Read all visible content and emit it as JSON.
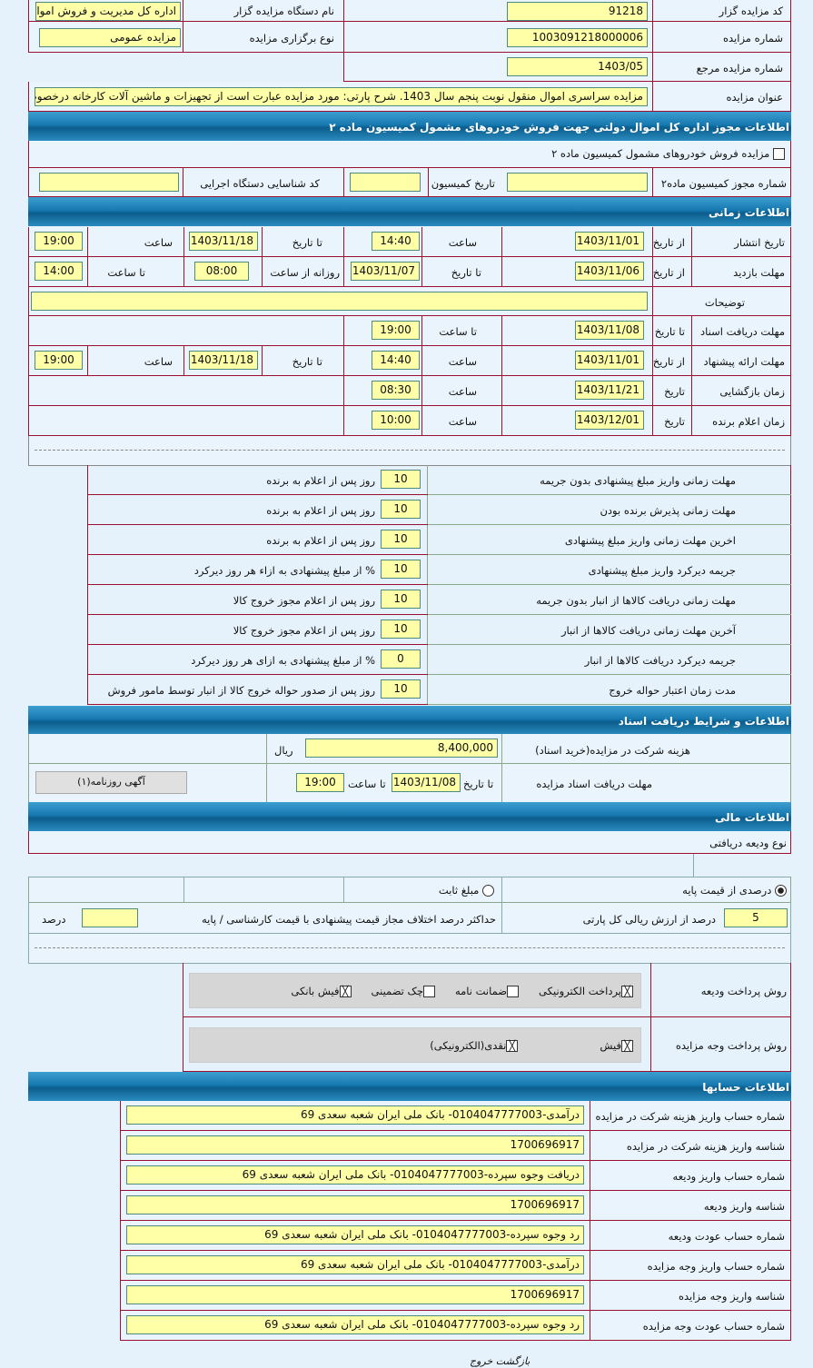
{
  "auction": {
    "code_label": "کد مزایده گزار",
    "code": "91218",
    "org_label": "نام دستگاه مزایده گزار",
    "org": "اداره کل مدیریت و فروش اموال",
    "number_label": "شماره مزایده",
    "number": "1003091218000006",
    "type_label": "نوع برگزاری مزایده",
    "type": "مزایده عمومی",
    "ref_label": "شماره مزایده مرجع",
    "ref": "1403/05",
    "title_label": "عنوان مزایده",
    "title": "مزایده سراسری اموال منقول نوبت پنجم سال 1403. شرح پارتی: مورد مزایده عبارت است از تجهیزات و ماشین آلات کارخانه درخصوص تولید"
  },
  "commission": {
    "header": "اطلاعات مجوز اداره کل اموال دولتی جهت فروش خودروهای مشمول کمیسیون ماده ۲",
    "checkbox_label": "مزایده فروش خودروهای مشمول کمیسیون ماده ۲",
    "checked": false,
    "permit_label": "شماره مجوز کمیسیون ماده۲",
    "permit": "",
    "date_label": "تاریخ کمیسیون",
    "date": "",
    "org_id_label": "کد شناسایی دستگاه اجرایی",
    "org_id": ""
  },
  "timing": {
    "header": "اطلاعات زمانی",
    "publish": {
      "label": "تاریخ انتشار",
      "from_label": "از تاریخ",
      "from": "1403/11/01",
      "time_label": "ساعت",
      "time": "14:40",
      "to_label": "تا تاریخ",
      "to": "1403/11/18",
      "time2_label": "ساعت",
      "time2": "19:00"
    },
    "visit": {
      "label": "مهلت بازدید",
      "from_label": "از تاریخ",
      "from": "1403/11/06",
      "to_label": "تا تاریخ",
      "to": "1403/11/07",
      "daily_label": "روزانه از ساعت",
      "daily_from": "08:00",
      "daily_to_label": "تا ساعت",
      "daily_to": "14:00"
    },
    "notes_label": "توضیحات",
    "notes": "",
    "docs": {
      "label": "مهلت دریافت اسناد",
      "date_label": "تا تاریخ",
      "date": "1403/11/08",
      "time_label": "تا ساعت",
      "time": "19:00"
    },
    "offer": {
      "label": "مهلت ارائه پیشنهاد",
      "from_label": "از تاریخ",
      "from": "1403/11/01",
      "time_label": "ساعت",
      "time": "14:40",
      "to_label": "تا تاریخ",
      "to": "1403/11/18",
      "time2_label": "ساعت",
      "time2": "19:00"
    },
    "opening": {
      "label": "زمان بازگشایی",
      "date_label": "تاریخ",
      "date": "1403/11/21",
      "time_label": "ساعت",
      "time": "08:30"
    },
    "winner": {
      "label": "زمان اعلام برنده",
      "date_label": "تاریخ",
      "date": "1403/12/01",
      "time_label": "ساعت",
      "time": "10:00"
    }
  },
  "rules": [
    {
      "label": "مهلت زمانی واریز مبلغ پیشنهادی بدون جریمه",
      "value": "10",
      "unit": "روز پس از اعلام به برنده"
    },
    {
      "label": "مهلت زمانی پذیرش برنده بودن",
      "value": "10",
      "unit": "روز پس از اعلام به برنده"
    },
    {
      "label": "اخرین مهلت زمانی واریز مبلغ پیشنهادی",
      "value": "10",
      "unit": "روز پس از اعلام به برنده"
    },
    {
      "label": "جریمه دیرکرد واریز مبلغ پیشنهادی",
      "value": "10",
      "unit": "% از مبلغ پیشنهادی به ازاء هر روز دیرکرد"
    },
    {
      "label": "مهلت زمانی دریافت کالاها از انبار بدون جریمه",
      "value": "10",
      "unit": "روز پس از اعلام مجوز خروج کالا"
    },
    {
      "label": "آخرین مهلت زمانی دریافت کالاها از انبار",
      "value": "10",
      "unit": "روز پس از اعلام مجوز خروج کالا"
    },
    {
      "label": "جریمه دیرکرد دریافت کالاها از انبار",
      "value": "0",
      "unit": "% از مبلغ پیشنهادی به ازای هر روز دیرکرد"
    },
    {
      "label": "مدت زمان اعتبار حواله خروج",
      "value": "10",
      "unit": "روز پس از صدور حواله خروج کالا از انبار توسط مامور فروش"
    }
  ],
  "documents": {
    "header": "اطلاعات و شرایط دریافت اسناد",
    "fee_label": "هزینه شرکت در مزایده(خرید اسناد)",
    "fee": "8,400,000",
    "currency": "ریال",
    "deadline_label": "مهلت دریافت اسناد مزایده",
    "date_label": "تا تاریخ",
    "date": "1403/11/08",
    "time_label": "تا ساعت",
    "time": "19:00",
    "newspaper_button": "آگهی روزنامه(۱)"
  },
  "financial": {
    "header": "اطلاعات مالی",
    "deposit_type_label": "نوع ودیعه دریافتی",
    "percent_option": "درصدی از قیمت پایه",
    "fixed_option": "مبلغ ثابت",
    "selected": "percent",
    "percent": "5",
    "percent_unit": "درصد از ارزش ریالی کل پارتی",
    "max_diff_label": "حداکثر درصد اختلاف مجاز قیمت پیشنهادی با قیمت کارشناسی / پایه",
    "max_diff": "",
    "max_diff_unit": "درصد",
    "deposit_method_label": "روش پرداخت ودیعه",
    "deposit_methods": [
      {
        "label": "پرداخت الکترونیکی",
        "checked": true
      },
      {
        "label": "ضمانت نامه",
        "checked": false
      },
      {
        "label": "چک تضمینی",
        "checked": false
      },
      {
        "label": "فیش بانکی",
        "checked": true
      }
    ],
    "payment_method_label": "روش پرداخت وجه مزایده",
    "payment_methods": [
      {
        "label": "فیش",
        "checked": true
      },
      {
        "label": "نقدی(الکترونیکی)",
        "checked": true
      }
    ]
  },
  "accounts": {
    "header": "اطلاعات حسابها",
    "items": [
      {
        "label": "شماره حساب واریز هزینه شرکت در مزایده",
        "value": "درآمدی-0104047777003- بانک ملی ایران شعبه سعدی 69"
      },
      {
        "label": "شناسه واریز هزینه شرکت در مزایده",
        "value": "1700696917"
      },
      {
        "label": "شماره حساب واریز ودیعه",
        "value": "دریافت وجوه سپرده-0104047777003- بانک ملی ایران شعبه سعدی 69"
      },
      {
        "label": "شناسه واریز ودیعه",
        "value": "1700696917"
      },
      {
        "label": "شماره حساب عودت ودیعه",
        "value": "رد وجوه سپرده-0104047777003- بانک ملی ایران شعبه سعدی 69"
      },
      {
        "label": "شماره حساب واریز وجه مزایده",
        "value": "درآمدی-0104047777003- بانک ملی ایران شعبه سعدی 69"
      },
      {
        "label": "شناسه واریز وجه مزایده",
        "value": "1700696917"
      },
      {
        "label": "شماره حساب عودت وجه مزایده",
        "value": "رد وجوه سپرده-0104047777003- بانک ملی ایران شعبه سعدی 69"
      }
    ]
  },
  "footer": {
    "back_link": "بازگشت خروج"
  }
}
